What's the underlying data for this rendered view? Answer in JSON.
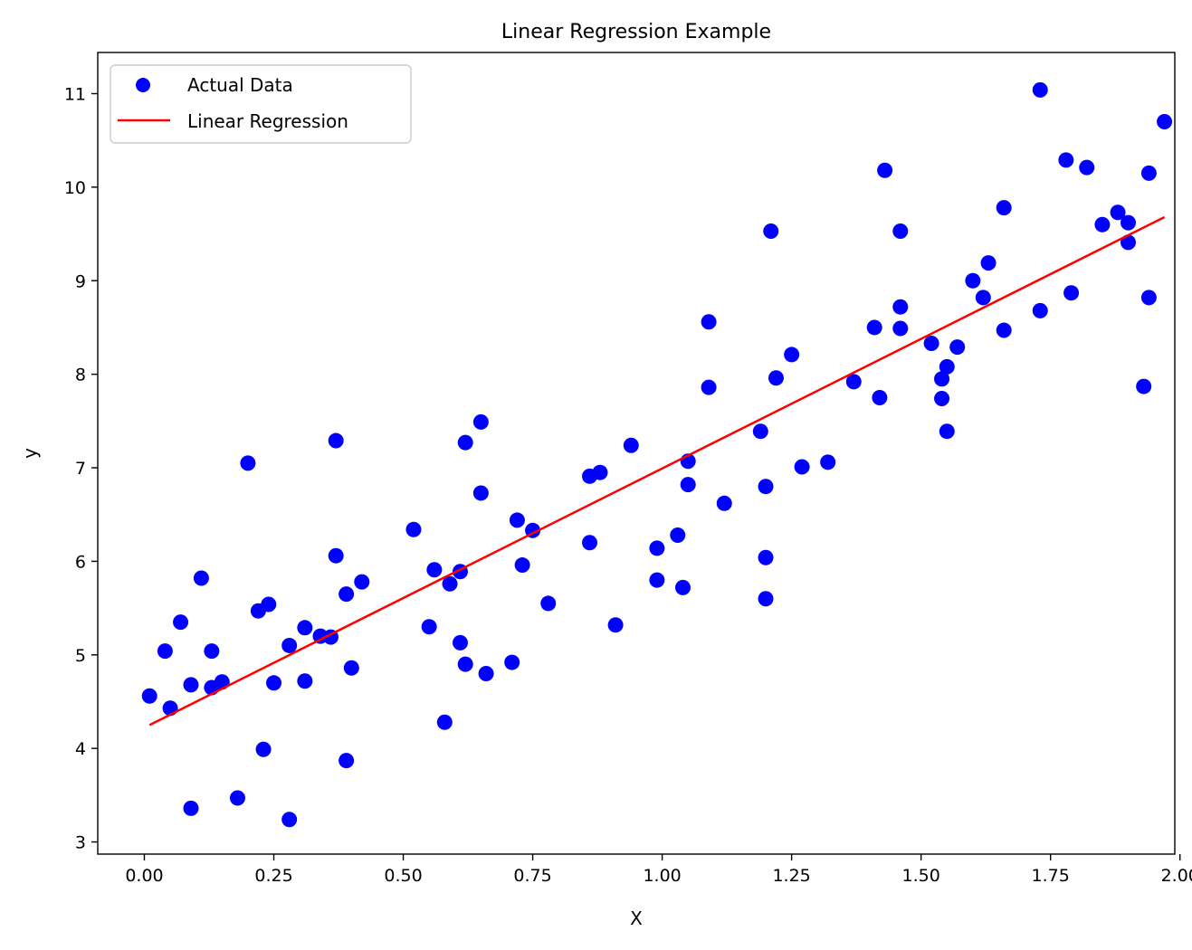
{
  "chart_data": {
    "type": "scatter",
    "title": "Linear Regression Example",
    "xlabel": "X",
    "ylabel": "y",
    "xlim": [
      -0.09,
      1.99
    ],
    "ylim": [
      2.87,
      11.44
    ],
    "xticks": [
      0.0,
      0.25,
      0.5,
      0.75,
      1.0,
      1.25,
      1.5,
      1.75,
      2.0
    ],
    "xtick_labels": [
      "0.00",
      "0.25",
      "0.50",
      "0.75",
      "1.00",
      "1.25",
      "1.50",
      "1.75",
      "2.00"
    ],
    "yticks": [
      3,
      4,
      5,
      6,
      7,
      8,
      9,
      10,
      11
    ],
    "ytick_labels": [
      "3",
      "4",
      "5",
      "6",
      "7",
      "8",
      "9",
      "10",
      "11"
    ],
    "grid": false,
    "legend_position": "top-left",
    "legend": [
      {
        "label": "Actual Data",
        "marker": "circle",
        "color": "#0000ff"
      },
      {
        "label": "Linear Regression",
        "marker": "line",
        "color": "#ff0000"
      }
    ],
    "series": [
      {
        "name": "Actual Data",
        "kind": "scatter",
        "color": "#0000ff",
        "points": [
          [
            0.01,
            4.56
          ],
          [
            0.04,
            5.04
          ],
          [
            0.05,
            4.43
          ],
          [
            0.07,
            5.35
          ],
          [
            0.09,
            3.36
          ],
          [
            0.09,
            4.68
          ],
          [
            0.11,
            5.82
          ],
          [
            0.13,
            5.04
          ],
          [
            0.13,
            4.65
          ],
          [
            0.15,
            4.71
          ],
          [
            0.18,
            3.47
          ],
          [
            0.2,
            7.05
          ],
          [
            0.22,
            5.47
          ],
          [
            0.23,
            3.99
          ],
          [
            0.24,
            5.54
          ],
          [
            0.25,
            4.7
          ],
          [
            0.28,
            5.1
          ],
          [
            0.28,
            3.24
          ],
          [
            0.31,
            5.29
          ],
          [
            0.31,
            4.72
          ],
          [
            0.34,
            5.2
          ],
          [
            0.36,
            5.19
          ],
          [
            0.37,
            7.29
          ],
          [
            0.37,
            6.06
          ],
          [
            0.39,
            5.65
          ],
          [
            0.39,
            3.87
          ],
          [
            0.4,
            4.86
          ],
          [
            0.42,
            5.78
          ],
          [
            0.52,
            6.34
          ],
          [
            0.55,
            5.3
          ],
          [
            0.56,
            5.91
          ],
          [
            0.58,
            4.28
          ],
          [
            0.59,
            5.76
          ],
          [
            0.61,
            5.13
          ],
          [
            0.61,
            5.89
          ],
          [
            0.62,
            4.9
          ],
          [
            0.62,
            7.27
          ],
          [
            0.65,
            7.49
          ],
          [
            0.65,
            6.73
          ],
          [
            0.66,
            4.8
          ],
          [
            0.71,
            4.92
          ],
          [
            0.72,
            6.44
          ],
          [
            0.73,
            5.96
          ],
          [
            0.75,
            6.33
          ],
          [
            0.78,
            5.55
          ],
          [
            0.86,
            6.91
          ],
          [
            0.86,
            6.2
          ],
          [
            0.88,
            6.95
          ],
          [
            0.91,
            5.32
          ],
          [
            0.94,
            7.24
          ],
          [
            0.99,
            6.14
          ],
          [
            0.99,
            5.8
          ],
          [
            1.03,
            6.28
          ],
          [
            1.04,
            5.72
          ],
          [
            1.05,
            7.07
          ],
          [
            1.05,
            6.82
          ],
          [
            1.09,
            8.56
          ],
          [
            1.09,
            7.86
          ],
          [
            1.12,
            6.62
          ],
          [
            1.19,
            7.39
          ],
          [
            1.2,
            5.6
          ],
          [
            1.2,
            6.04
          ],
          [
            1.2,
            6.8
          ],
          [
            1.21,
            9.53
          ],
          [
            1.22,
            7.96
          ],
          [
            1.25,
            8.21
          ],
          [
            1.27,
            7.01
          ],
          [
            1.32,
            7.06
          ],
          [
            1.37,
            7.92
          ],
          [
            1.41,
            8.5
          ],
          [
            1.42,
            7.75
          ],
          [
            1.43,
            10.18
          ],
          [
            1.46,
            8.72
          ],
          [
            1.46,
            9.53
          ],
          [
            1.46,
            8.49
          ],
          [
            1.52,
            8.33
          ],
          [
            1.54,
            7.74
          ],
          [
            1.54,
            7.95
          ],
          [
            1.55,
            7.39
          ],
          [
            1.55,
            8.08
          ],
          [
            1.57,
            8.29
          ],
          [
            1.6,
            9.0
          ],
          [
            1.62,
            8.82
          ],
          [
            1.63,
            9.19
          ],
          [
            1.66,
            9.78
          ],
          [
            1.66,
            8.47
          ],
          [
            1.73,
            11.04
          ],
          [
            1.73,
            8.68
          ],
          [
            1.78,
            10.29
          ],
          [
            1.79,
            8.87
          ],
          [
            1.82,
            10.21
          ],
          [
            1.85,
            9.6
          ],
          [
            1.88,
            9.73
          ],
          [
            1.9,
            9.62
          ],
          [
            1.9,
            9.41
          ],
          [
            1.93,
            7.87
          ],
          [
            1.94,
            10.15
          ],
          [
            1.94,
            8.82
          ],
          [
            1.97,
            10.7
          ]
        ]
      },
      {
        "name": "Linear Regression",
        "kind": "line",
        "color": "#ff0000",
        "points": [
          [
            0.01,
            4.25
          ],
          [
            1.97,
            9.68
          ]
        ]
      }
    ]
  }
}
